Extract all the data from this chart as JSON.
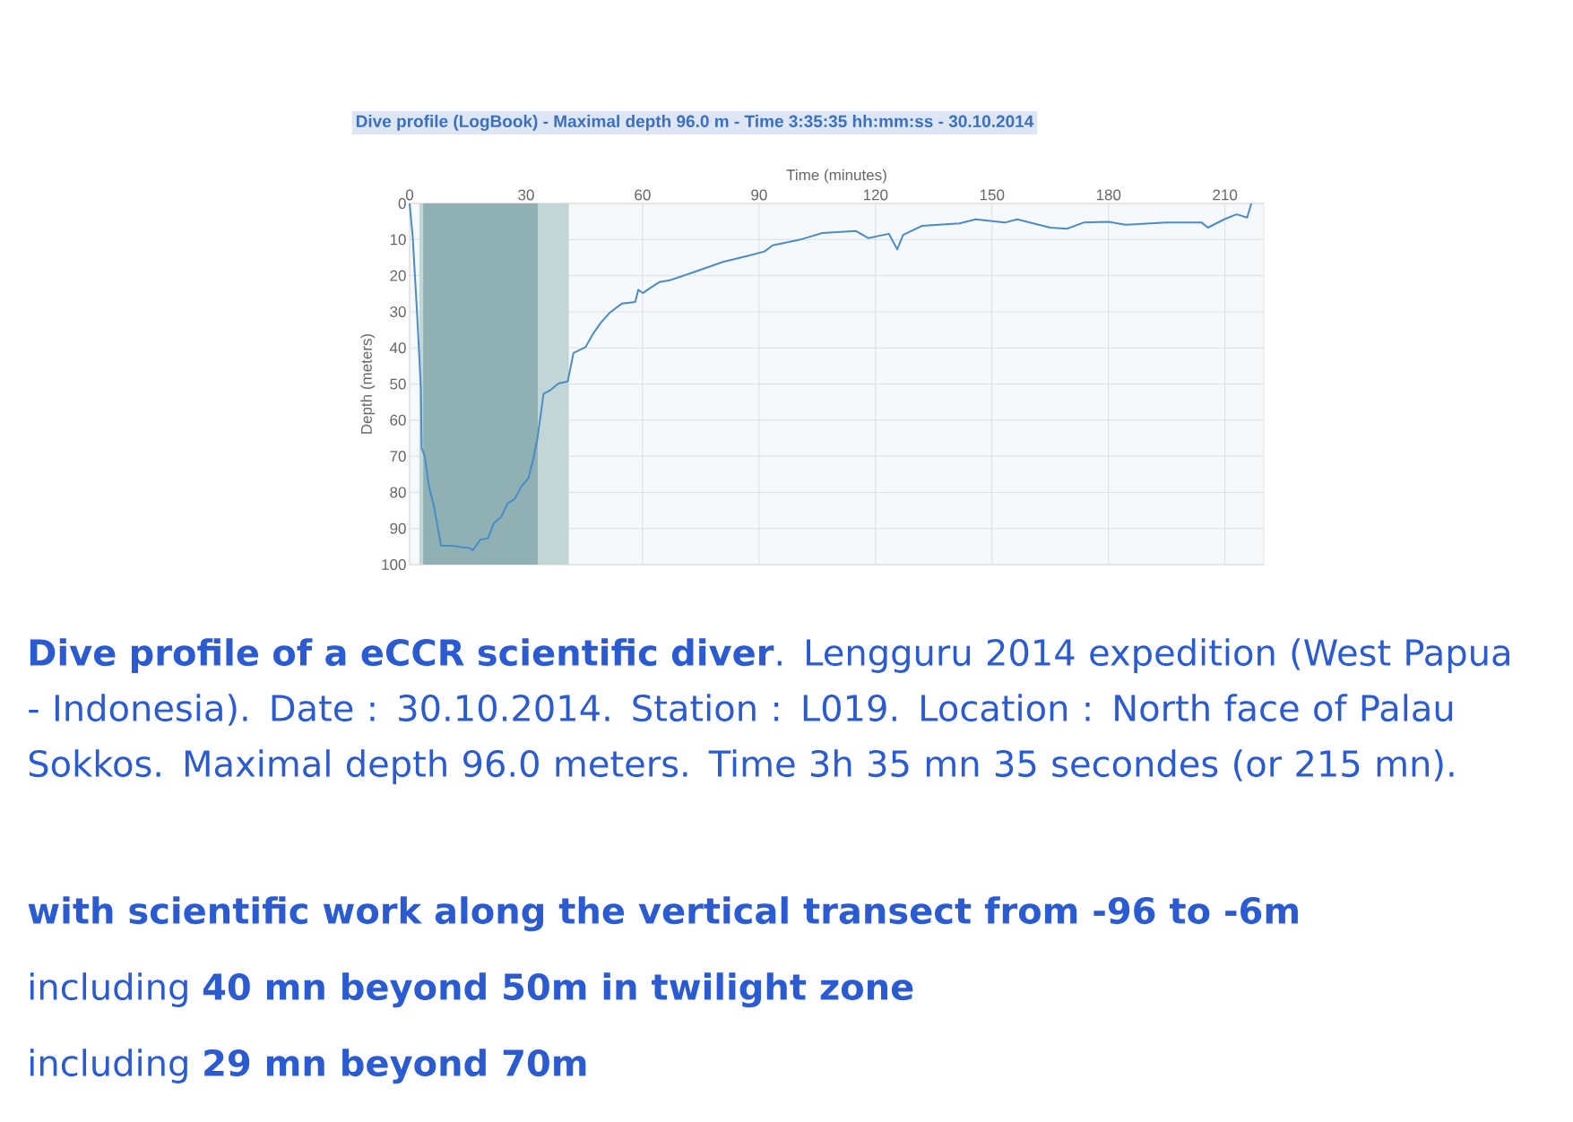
{
  "chart_data": {
    "type": "line",
    "title": "Dive profile (LogBook) - Maximal depth 96.0 m - Time 3:35:35 hh:mm:ss - 30.10.2014",
    "xlabel": "Time (minutes)",
    "ylabel": "Depth (meters)",
    "xlim": [
      0,
      220
    ],
    "xticks": [
      0,
      30,
      60,
      90,
      120,
      150,
      180,
      210
    ],
    "ylim": [
      100,
      0
    ],
    "yticks": [
      0,
      10,
      20,
      30,
      40,
      50,
      60,
      70,
      80,
      90,
      100
    ],
    "grid": true,
    "marker": "none",
    "line_style": "solid",
    "bands": [
      {
        "axis": "x",
        "from": 2.5,
        "to": 41,
        "color": "#c3d6d6"
      },
      {
        "axis": "x",
        "from": 3.5,
        "to": 33,
        "color": "#8fb1b3"
      }
    ],
    "series": [
      {
        "color": "#4a8cc8",
        "x": [
          0,
          0.8,
          1.9,
          2.9,
          3.1,
          3.9,
          5.0,
          6.2,
          8.1,
          11.2,
          13.6,
          15.1,
          16.3,
          17.4,
          18.2,
          20.2,
          21.7,
          23.6,
          25.2,
          27.1,
          28.7,
          30.6,
          31.8,
          32.9,
          34.5,
          36.1,
          38.4,
          40.7,
          42.2,
          45.3,
          47.3,
          49.2,
          51.6,
          54.7,
          58.1,
          58.9,
          60.1,
          62.4,
          64.3,
          66.9,
          73.3,
          80.7,
          87.1,
          91.4,
          93.5,
          101.0,
          106.3,
          114.9,
          118.1,
          123.4,
          125.6,
          127.1,
          132.0,
          141.6,
          145.8,
          153.3,
          156.5,
          165.0,
          169.3,
          173.6,
          180.0,
          184.3,
          194.9,
          204.0,
          205.6,
          209.8,
          213.0,
          215.7,
          216.8
        ],
        "values": [
          0,
          9.3,
          30,
          51,
          67.7,
          70,
          78.5,
          83.5,
          94.8,
          94.8,
          95.2,
          95.3,
          96.0,
          94.3,
          93.1,
          92.7,
          88.5,
          86.8,
          83.1,
          81.8,
          78.5,
          76,
          71,
          65.2,
          52.7,
          51.8,
          49.8,
          49.3,
          41.4,
          39.8,
          36,
          33.1,
          30.2,
          27.7,
          27.3,
          23.9,
          24.8,
          23.1,
          21.8,
          21.3,
          19.0,
          16.2,
          14.5,
          13.3,
          11.6,
          9.9,
          8.2,
          7.6,
          9.6,
          8.4,
          12.7,
          8.7,
          6.2,
          5.5,
          4.4,
          5.3,
          4.4,
          6.7,
          7.0,
          5.3,
          5.1,
          5.9,
          5.3,
          5.3,
          6.7,
          4.4,
          3.0,
          3.9,
          0
        ]
      }
    ],
    "annotations": [
      "**Dive profile of a eCCR scientific diver**. Lengguru 2014 expedition (West Papua - Indonesia). Date : 30.10.2014. Station : L019. Location : North face of Palau Sokkos. Maximal depth 96.0 meters. Time 3h 35 mn 35 secondes (or 215 mn).",
      "with scientific work along the vertical transect from -96 to -6m",
      "including **40 mn beyond 50m in twilight zone**",
      "including **29 mn beyond 70m**"
    ]
  }
}
